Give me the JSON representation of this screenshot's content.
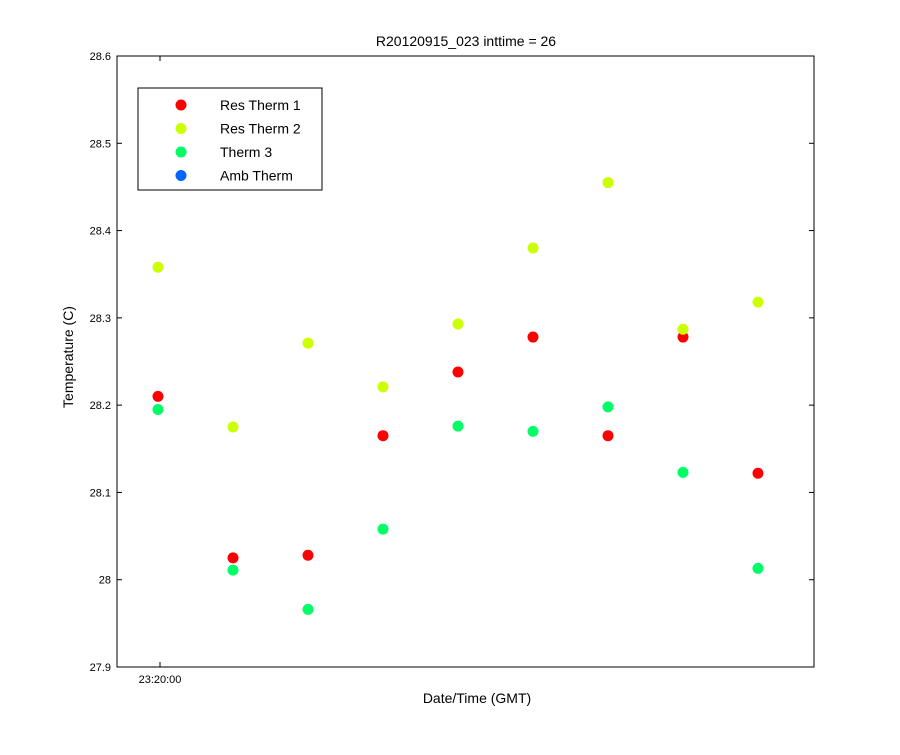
{
  "chart_data": {
    "type": "scatter",
    "title": "R20120915_023 inttime = 26",
    "xlabel": "Date/Time (GMT)",
    "ylabel": "Temperature (C)",
    "ylim": [
      27.9,
      28.6
    ],
    "yticks": [
      "27.9",
      "28",
      "28.1",
      "28.2",
      "28.3",
      "28.4",
      "28.5",
      "28.6"
    ],
    "xticks": [
      "23:20:00"
    ],
    "grid": false,
    "legend_position": "top-left",
    "x": [
      1,
      2,
      3,
      4,
      5,
      6,
      7,
      8,
      9
    ],
    "series": [
      {
        "name": "Res Therm 1",
        "color": "#ff0000",
        "values": [
          28.21,
          28.025,
          28.028,
          28.165,
          28.238,
          28.278,
          28.165,
          28.278,
          28.122
        ]
      },
      {
        "name": "Res Therm 2",
        "color": "#ccff00",
        "values": [
          28.358,
          28.175,
          28.271,
          28.221,
          28.293,
          28.38,
          28.455,
          28.287,
          28.318
        ]
      },
      {
        "name": "Therm 3",
        "color": "#00ff66",
        "values": [
          28.195,
          28.011,
          27.966,
          28.058,
          28.176,
          28.17,
          28.198,
          28.123,
          28.013
        ]
      },
      {
        "name": "Amb Therm",
        "color": "#0066ff",
        "values": []
      }
    ]
  }
}
